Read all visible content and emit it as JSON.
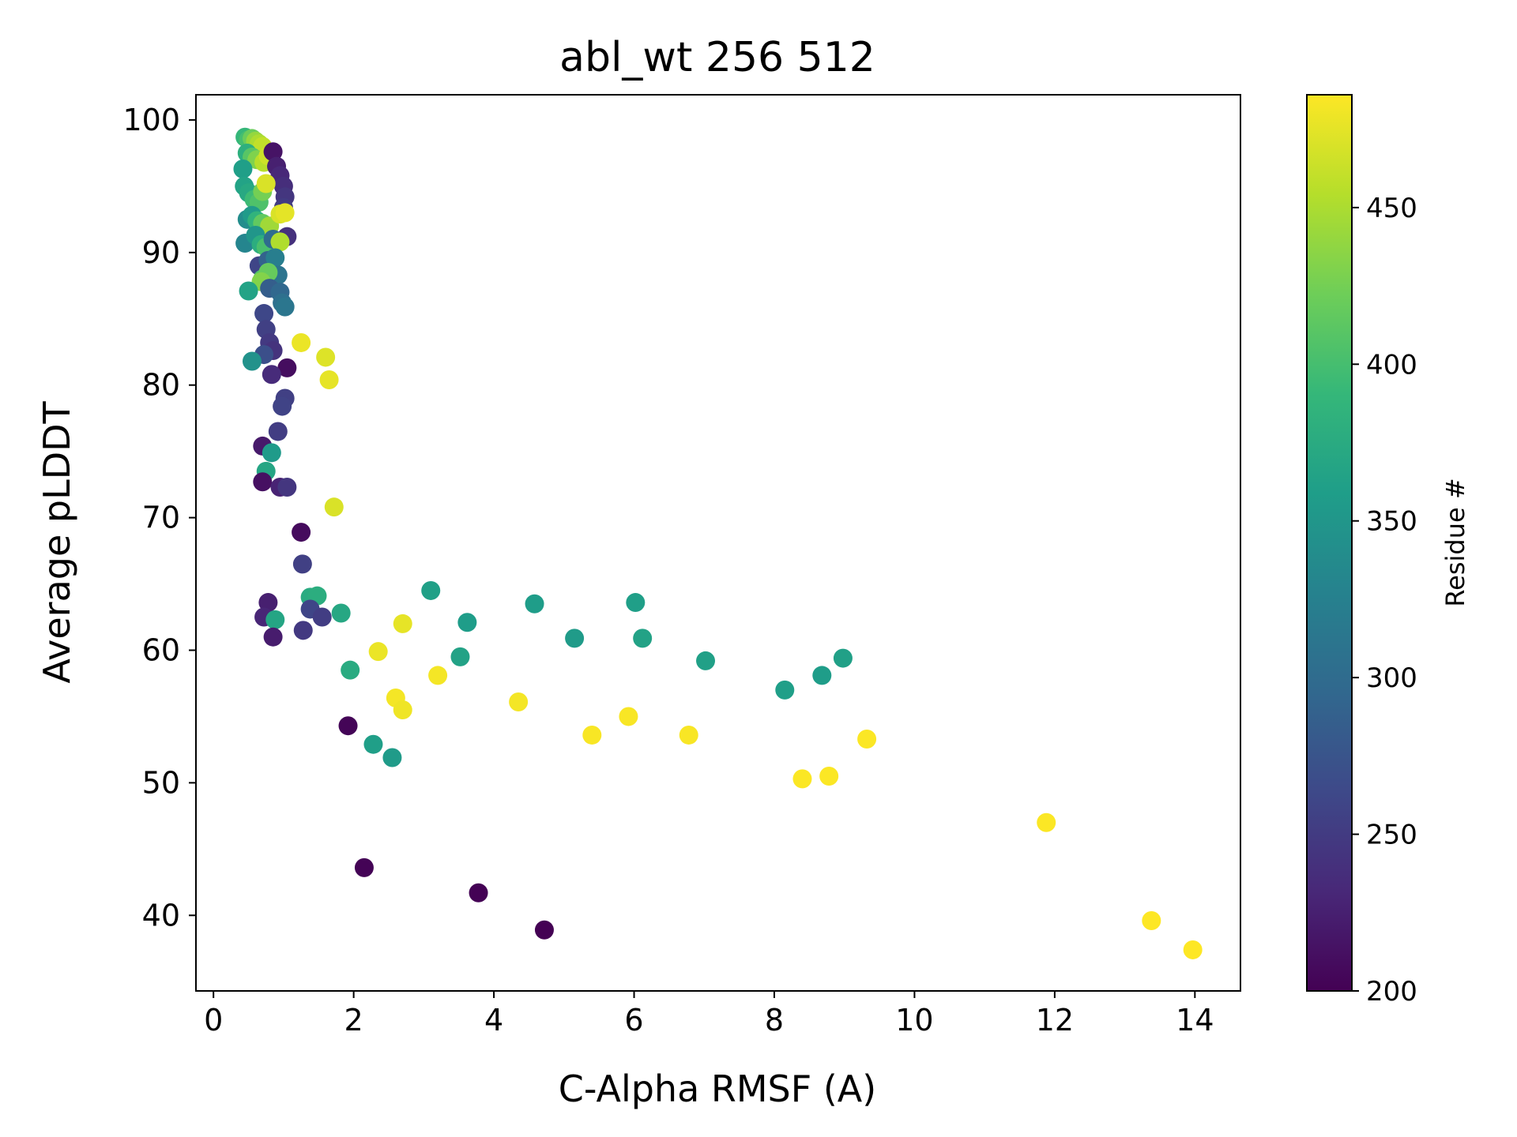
{
  "chart_data": {
    "type": "scatter",
    "title": "abl_wt 256 512",
    "xlabel": "C-Alpha RMSF (A)",
    "ylabel": "Average pLDDT",
    "xlim": [
      -0.25,
      14.65
    ],
    "ylim": [
      34.3,
      101.9
    ],
    "xticks": [
      0,
      2,
      4,
      6,
      8,
      10,
      12,
      14
    ],
    "yticks": [
      40,
      50,
      60,
      70,
      80,
      90,
      100
    ],
    "grid": false,
    "colormap": "viridis",
    "colorbar": {
      "label": "Residue #",
      "range": [
        200,
        486
      ],
      "ticks": [
        200,
        250,
        300,
        350,
        400,
        450
      ]
    },
    "color_stops": [
      "#440154",
      "#482878",
      "#3e4989",
      "#31688e",
      "#26828e",
      "#1f9e89",
      "#35b779",
      "#6ece58",
      "#b5de2b",
      "#fde725"
    ],
    "points": [
      {
        "x": 0.45,
        "y": 98.7,
        "r": 390
      },
      {
        "x": 0.5,
        "y": 98.5,
        "r": 400
      },
      {
        "x": 0.55,
        "y": 98.6,
        "r": 420
      },
      {
        "x": 0.6,
        "y": 98.4,
        "r": 440
      },
      {
        "x": 0.65,
        "y": 98.2,
        "r": 450
      },
      {
        "x": 0.7,
        "y": 98.0,
        "r": 460
      },
      {
        "x": 0.48,
        "y": 97.5,
        "r": 380
      },
      {
        "x": 0.55,
        "y": 97.2,
        "r": 410
      },
      {
        "x": 0.62,
        "y": 97.0,
        "r": 430
      },
      {
        "x": 0.72,
        "y": 96.8,
        "r": 455
      },
      {
        "x": 0.78,
        "y": 97.3,
        "r": 465
      },
      {
        "x": 0.85,
        "y": 97.6,
        "r": 215
      },
      {
        "x": 0.9,
        "y": 96.5,
        "r": 225
      },
      {
        "x": 0.95,
        "y": 95.8,
        "r": 232
      },
      {
        "x": 1.0,
        "y": 95.0,
        "r": 238
      },
      {
        "x": 1.02,
        "y": 94.2,
        "r": 245
      },
      {
        "x": 1.0,
        "y": 93.4,
        "r": 250
      },
      {
        "x": 1.05,
        "y": 91.2,
        "r": 240
      },
      {
        "x": 0.42,
        "y": 96.3,
        "r": 360
      },
      {
        "x": 0.44,
        "y": 95.0,
        "r": 365
      },
      {
        "x": 0.5,
        "y": 94.5,
        "r": 372
      },
      {
        "x": 0.58,
        "y": 94.0,
        "r": 395
      },
      {
        "x": 0.65,
        "y": 93.8,
        "r": 405
      },
      {
        "x": 0.7,
        "y": 94.6,
        "r": 425
      },
      {
        "x": 0.75,
        "y": 95.2,
        "r": 470
      },
      {
        "x": 0.48,
        "y": 92.5,
        "r": 340
      },
      {
        "x": 0.55,
        "y": 92.8,
        "r": 355
      },
      {
        "x": 0.62,
        "y": 92.4,
        "r": 385
      },
      {
        "x": 0.7,
        "y": 92.2,
        "r": 415
      },
      {
        "x": 0.8,
        "y": 92.0,
        "r": 445
      },
      {
        "x": 0.95,
        "y": 92.9,
        "r": 470
      },
      {
        "x": 1.02,
        "y": 93.0,
        "r": 475
      },
      {
        "x": 0.45,
        "y": 90.7,
        "r": 330
      },
      {
        "x": 0.6,
        "y": 91.3,
        "r": 350
      },
      {
        "x": 0.68,
        "y": 90.6,
        "r": 378
      },
      {
        "x": 0.75,
        "y": 90.4,
        "r": 402
      },
      {
        "x": 0.85,
        "y": 91.0,
        "r": 300
      },
      {
        "x": 0.95,
        "y": 90.8,
        "r": 452
      },
      {
        "x": 0.65,
        "y": 89.0,
        "r": 260
      },
      {
        "x": 0.78,
        "y": 89.4,
        "r": 290
      },
      {
        "x": 0.88,
        "y": 89.6,
        "r": 322
      },
      {
        "x": 0.92,
        "y": 88.3,
        "r": 310
      },
      {
        "x": 0.7,
        "y": 88.0,
        "r": 408
      },
      {
        "x": 0.78,
        "y": 88.5,
        "r": 418
      },
      {
        "x": 0.68,
        "y": 87.8,
        "r": 432
      },
      {
        "x": 0.5,
        "y": 87.1,
        "r": 365
      },
      {
        "x": 0.8,
        "y": 87.3,
        "r": 285
      },
      {
        "x": 0.95,
        "y": 87.0,
        "r": 295
      },
      {
        "x": 0.98,
        "y": 86.2,
        "r": 305
      },
      {
        "x": 1.02,
        "y": 85.9,
        "r": 312
      },
      {
        "x": 0.72,
        "y": 85.4,
        "r": 262
      },
      {
        "x": 0.75,
        "y": 84.2,
        "r": 255
      },
      {
        "x": 0.8,
        "y": 83.2,
        "r": 248
      },
      {
        "x": 0.85,
        "y": 82.6,
        "r": 242
      },
      {
        "x": 0.72,
        "y": 82.3,
        "r": 270
      },
      {
        "x": 0.55,
        "y": 81.8,
        "r": 345
      },
      {
        "x": 1.05,
        "y": 81.3,
        "r": 210
      },
      {
        "x": 0.83,
        "y": 80.8,
        "r": 235
      },
      {
        "x": 1.02,
        "y": 79.0,
        "r": 255
      },
      {
        "x": 0.98,
        "y": 78.4,
        "r": 258
      },
      {
        "x": 0.92,
        "y": 76.5,
        "r": 252
      },
      {
        "x": 0.7,
        "y": 75.4,
        "r": 220
      },
      {
        "x": 0.83,
        "y": 74.9,
        "r": 355
      },
      {
        "x": 0.75,
        "y": 73.5,
        "r": 368
      },
      {
        "x": 0.7,
        "y": 72.7,
        "r": 212
      },
      {
        "x": 0.95,
        "y": 72.3,
        "r": 228
      },
      {
        "x": 1.05,
        "y": 72.3,
        "r": 245
      },
      {
        "x": 1.25,
        "y": 83.2,
        "r": 478
      },
      {
        "x": 1.6,
        "y": 82.1,
        "r": 472
      },
      {
        "x": 1.65,
        "y": 80.4,
        "r": 476
      },
      {
        "x": 1.72,
        "y": 70.8,
        "r": 470
      },
      {
        "x": 1.25,
        "y": 68.9,
        "r": 208
      },
      {
        "x": 1.27,
        "y": 66.5,
        "r": 255
      },
      {
        "x": 0.78,
        "y": 63.6,
        "r": 225
      },
      {
        "x": 0.72,
        "y": 62.5,
        "r": 230
      },
      {
        "x": 0.88,
        "y": 62.3,
        "r": 368
      },
      {
        "x": 0.85,
        "y": 61.0,
        "r": 222
      },
      {
        "x": 1.28,
        "y": 61.5,
        "r": 248
      },
      {
        "x": 1.38,
        "y": 64.0,
        "r": 375
      },
      {
        "x": 1.48,
        "y": 64.1,
        "r": 378
      },
      {
        "x": 1.38,
        "y": 63.1,
        "r": 260
      },
      {
        "x": 1.55,
        "y": 62.5,
        "r": 252
      },
      {
        "x": 1.82,
        "y": 62.8,
        "r": 370
      },
      {
        "x": 1.95,
        "y": 58.5,
        "r": 375
      },
      {
        "x": 1.92,
        "y": 54.3,
        "r": 203
      },
      {
        "x": 2.28,
        "y": 52.9,
        "r": 360
      },
      {
        "x": 2.55,
        "y": 51.9,
        "r": 356
      },
      {
        "x": 2.35,
        "y": 59.9,
        "r": 478
      },
      {
        "x": 2.7,
        "y": 62.0,
        "r": 476
      },
      {
        "x": 2.6,
        "y": 56.4,
        "r": 482
      },
      {
        "x": 2.7,
        "y": 55.5,
        "r": 480
      },
      {
        "x": 3.2,
        "y": 58.1,
        "r": 482
      },
      {
        "x": 3.1,
        "y": 64.5,
        "r": 362
      },
      {
        "x": 3.62,
        "y": 62.1,
        "r": 358
      },
      {
        "x": 3.52,
        "y": 59.5,
        "r": 364
      },
      {
        "x": 4.35,
        "y": 56.1,
        "r": 482
      },
      {
        "x": 4.58,
        "y": 63.5,
        "r": 358
      },
      {
        "x": 5.15,
        "y": 60.9,
        "r": 356
      },
      {
        "x": 5.4,
        "y": 53.6,
        "r": 484
      },
      {
        "x": 5.92,
        "y": 55.0,
        "r": 484
      },
      {
        "x": 6.02,
        "y": 63.6,
        "r": 360
      },
      {
        "x": 6.12,
        "y": 60.9,
        "r": 364
      },
      {
        "x": 6.78,
        "y": 53.6,
        "r": 484
      },
      {
        "x": 7.02,
        "y": 59.2,
        "r": 362
      },
      {
        "x": 8.15,
        "y": 57.0,
        "r": 360
      },
      {
        "x": 8.4,
        "y": 50.3,
        "r": 485
      },
      {
        "x": 8.68,
        "y": 58.1,
        "r": 358
      },
      {
        "x": 8.78,
        "y": 50.5,
        "r": 485
      },
      {
        "x": 8.98,
        "y": 59.4,
        "r": 362
      },
      {
        "x": 9.32,
        "y": 53.3,
        "r": 485
      },
      {
        "x": 11.88,
        "y": 47.0,
        "r": 485
      },
      {
        "x": 2.15,
        "y": 43.6,
        "r": 202
      },
      {
        "x": 3.78,
        "y": 41.7,
        "r": 201
      },
      {
        "x": 4.72,
        "y": 38.9,
        "r": 200
      },
      {
        "x": 13.38,
        "y": 39.6,
        "r": 486
      },
      {
        "x": 13.97,
        "y": 37.4,
        "r": 486
      }
    ]
  }
}
